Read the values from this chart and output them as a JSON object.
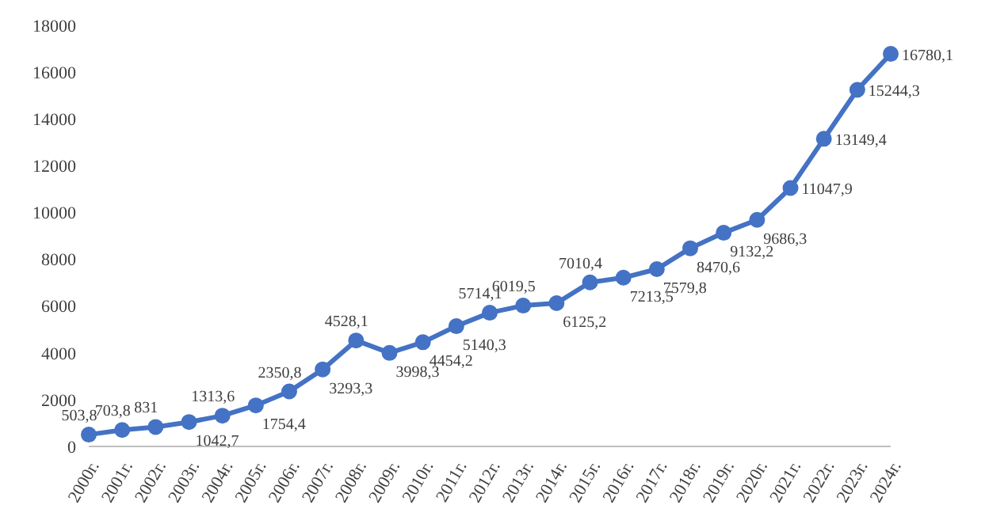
{
  "chart_data": {
    "type": "line",
    "categories": [
      "2000г.",
      "2001г.",
      "2002г.",
      "2003г.",
      "2004г.",
      "2005г.",
      "2006г.",
      "2007г.",
      "2008г.",
      "2009г.",
      "2010г.",
      "2011г.",
      "2012г.",
      "2013г.",
      "2014г.",
      "2015г.",
      "2016г.",
      "2017г.",
      "2018г.",
      "2019г.",
      "2020г.",
      "2021г.",
      "2022г.",
      "2023г.",
      "2024г."
    ],
    "series": [
      {
        "color": "#4472c4",
        "values": [
          503.8,
          703.8,
          831,
          1042.7,
          1313.6,
          1754.4,
          2350.8,
          3293.3,
          4528.1,
          3998.3,
          4454.2,
          5140.3,
          5714.1,
          6019.5,
          6125.2,
          7010.4,
          7213.5,
          7579.8,
          8470.6,
          9132.2,
          9686.3,
          11047.9,
          13149.4,
          15244.3,
          16780.1
        ],
        "value_labels": [
          "503,8",
          "703,8",
          "831",
          "1042,7",
          "1313,6",
          "1754,4",
          "2350,8",
          "3293,3",
          "4528,1",
          "3998,3",
          "4454,2",
          "5140,3",
          "5714,1",
          "6019,5",
          "6125,2",
          "7010,4",
          "7213,5",
          "7579,8",
          "8470,6",
          "9132,2",
          "9686,3",
          "11047,9",
          "13149,4",
          "15244,3",
          "16780,1"
        ]
      }
    ],
    "ylim": [
      0,
      18000
    ],
    "yticks": [
      0,
      2000,
      4000,
      6000,
      8000,
      10000,
      12000,
      14000,
      16000,
      18000
    ],
    "marker": "circle",
    "line_style": "solid"
  }
}
